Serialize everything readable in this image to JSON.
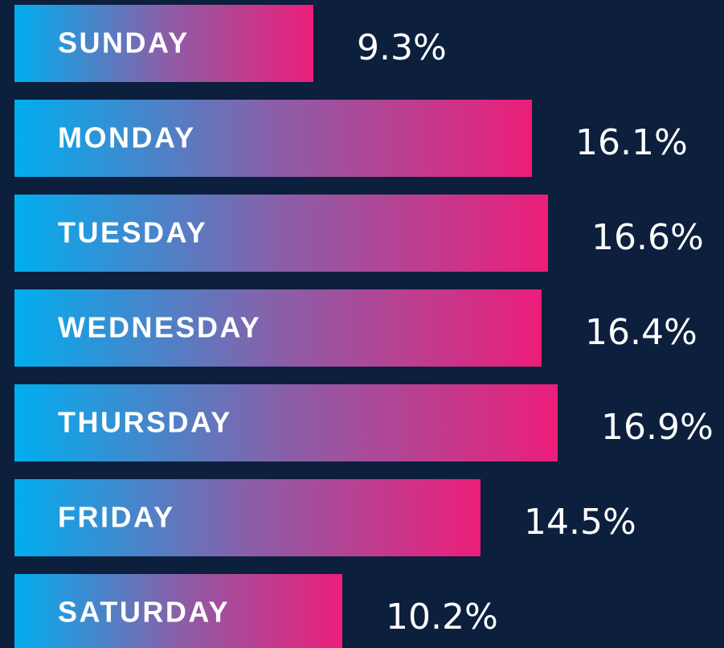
{
  "chart_data": {
    "type": "bar",
    "orientation": "horizontal",
    "categories": [
      "SUNDAY",
      "MONDAY",
      "TUESDAY",
      "WEDNESDAY",
      "THURSDAY",
      "FRIDAY",
      "SATURDAY"
    ],
    "values": [
      9.3,
      16.1,
      16.6,
      16.4,
      16.9,
      14.5,
      10.2
    ],
    "value_labels": [
      "9.3%",
      "16.1%",
      "16.6%",
      "16.4%",
      "16.9%",
      "14.5%",
      "10.2%"
    ],
    "gradient": [
      "#00aeef",
      "#8a5fa8",
      "#ec1e79"
    ],
    "background": "#0c1f3d",
    "xlim": [
      0,
      17.5
    ]
  }
}
